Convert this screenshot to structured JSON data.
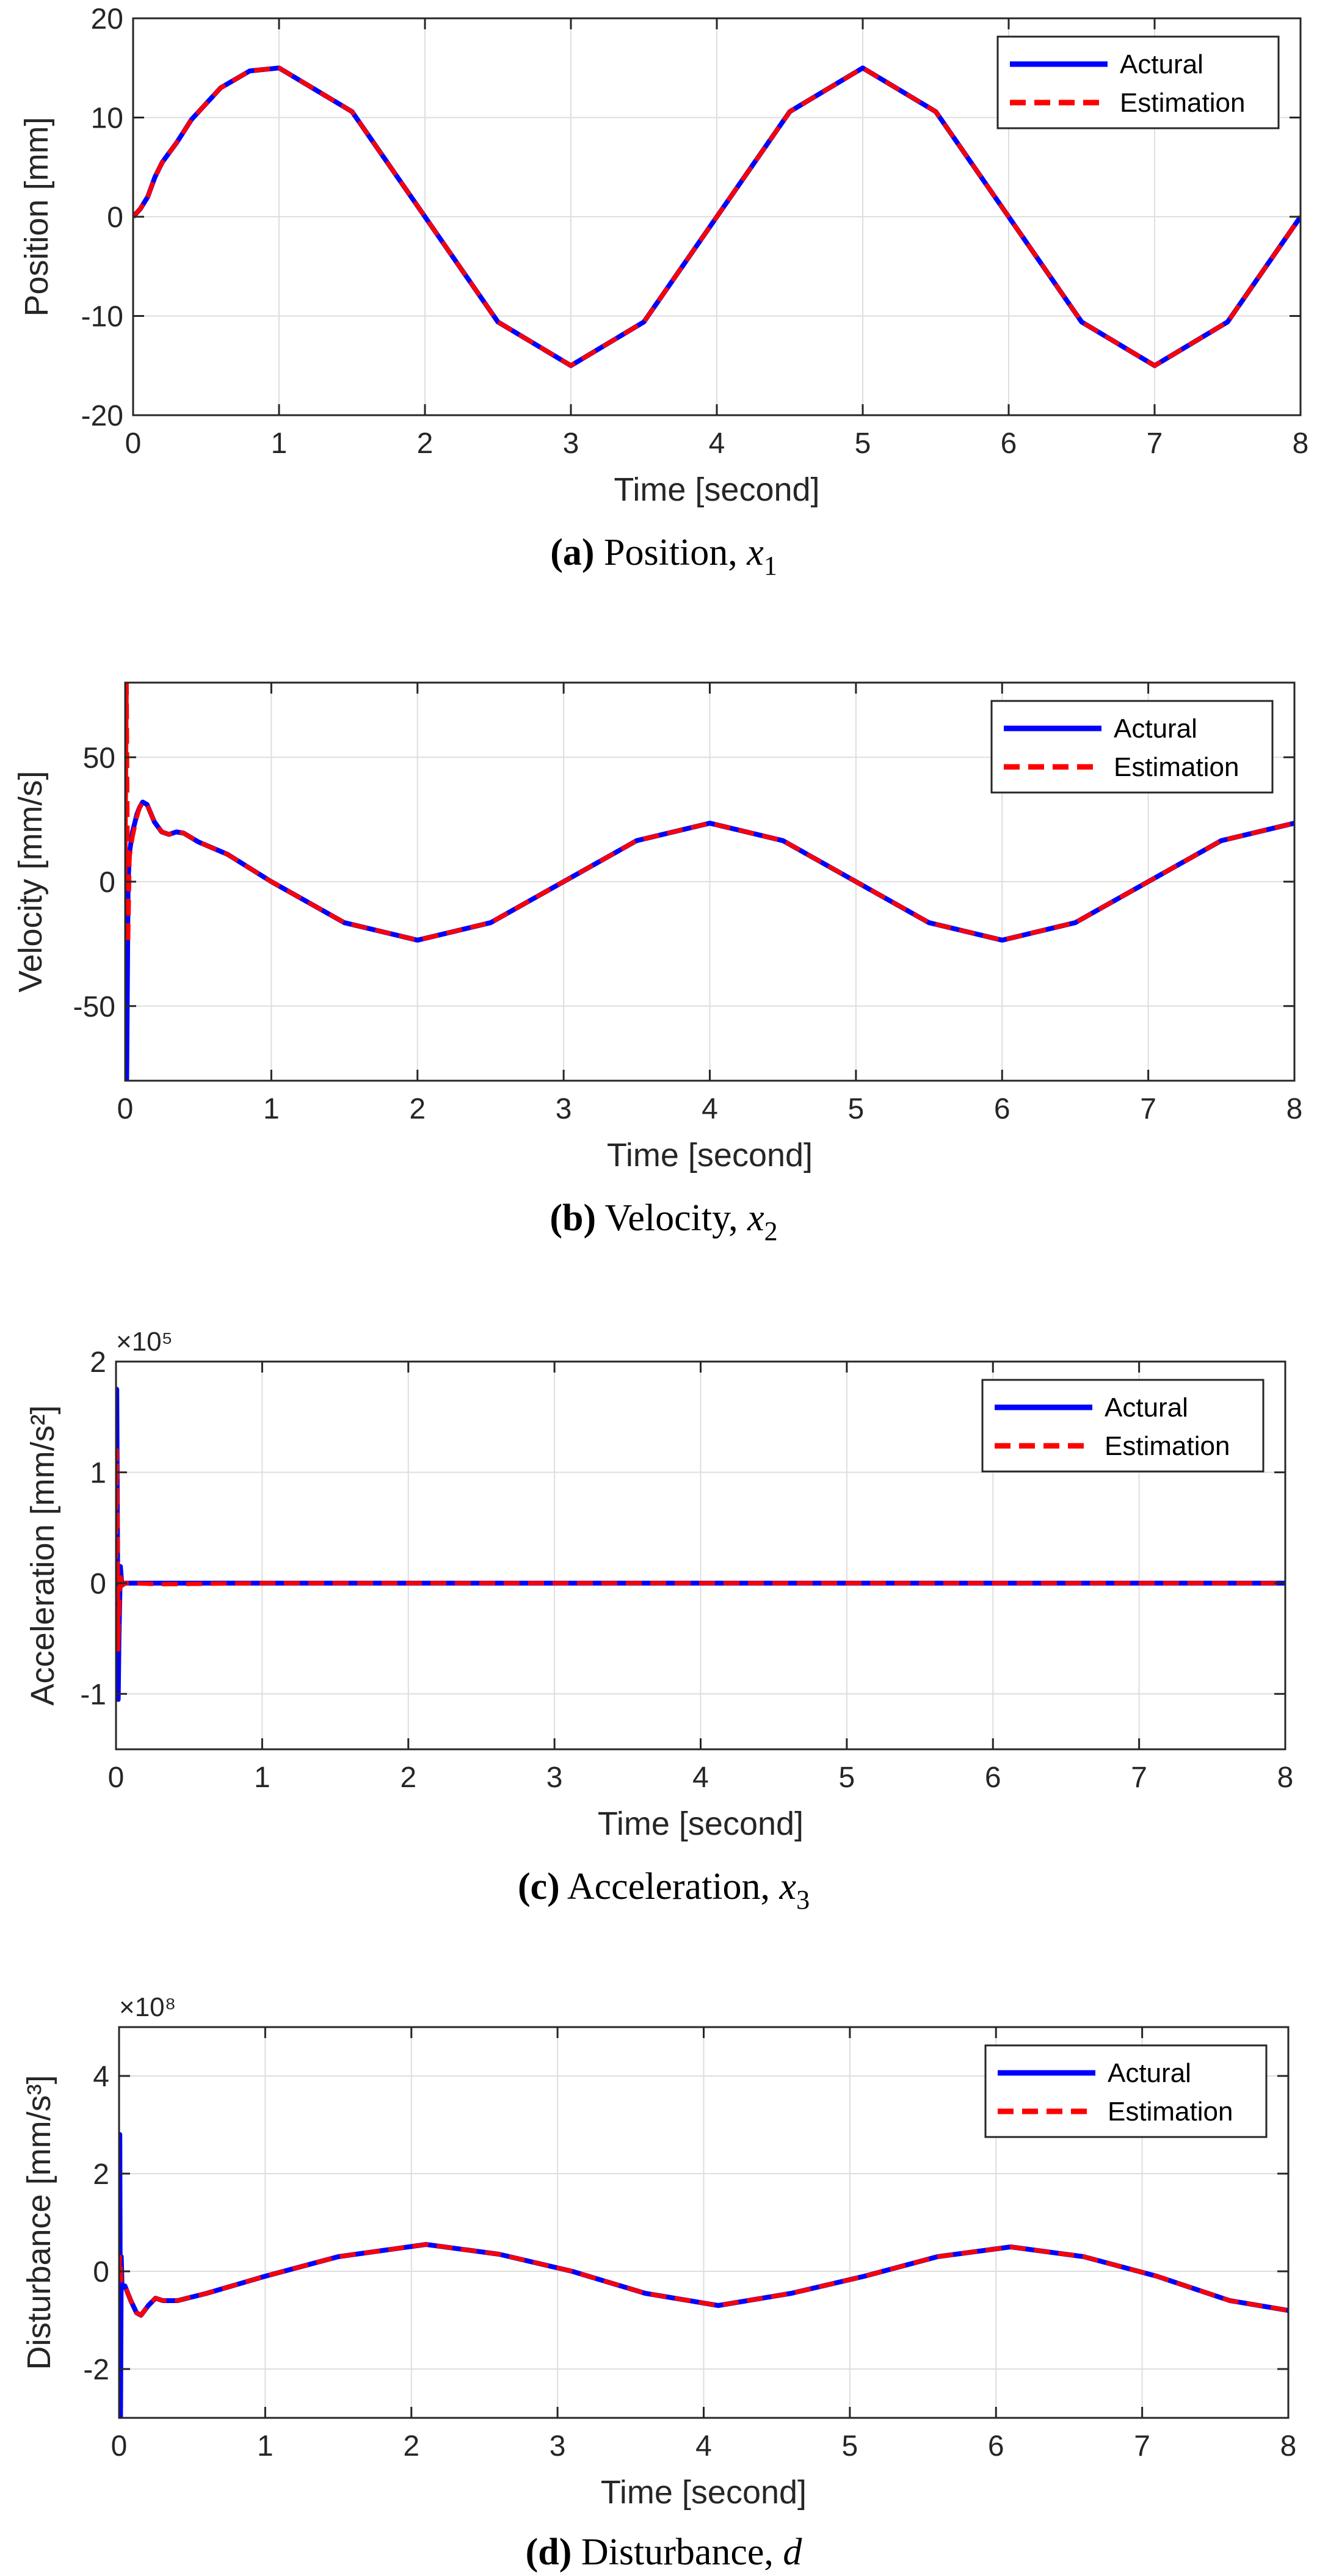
{
  "colors": {
    "actual": "#0000ff",
    "estimate": "#ff0000",
    "grid": "#dedede",
    "axis": "#262626"
  },
  "chart_data": [
    {
      "type": "line",
      "id": "a",
      "title": "",
      "xlabel": "Time [second]",
      "ylabel": "Position [mm]",
      "xlim": [
        0,
        8
      ],
      "ylim": [
        -20,
        20
      ],
      "xticks": [
        0,
        1,
        2,
        3,
        4,
        5,
        6,
        7,
        8
      ],
      "xtick_labels": [
        "0",
        "1",
        "2",
        "3",
        "4",
        "5",
        "6",
        "7",
        "8"
      ],
      "yticks": [
        -20,
        -10,
        0,
        10,
        20
      ],
      "ytick_labels": [
        "-20",
        "-10",
        "0",
        "10",
        "20"
      ],
      "multiplier": "",
      "grid": true,
      "legend": {
        "position": "top-right",
        "entries": [
          "Actural",
          "Estimation"
        ]
      },
      "series": [
        {
          "name": "Actural",
          "style": "solid",
          "x": [
            0,
            0.05,
            0.1,
            0.15,
            0.2,
            0.3,
            0.4,
            0.6,
            0.8,
            1.0,
            1.5,
            2.0,
            2.5,
            3.0,
            3.5,
            4.0,
            4.5,
            5.0,
            5.5,
            6.0,
            6.5,
            7.0,
            7.5,
            8.0
          ],
          "y": [
            0,
            0.8,
            2.0,
            4.0,
            5.5,
            7.5,
            9.8,
            13.0,
            14.7,
            15.0,
            10.6,
            0,
            -10.6,
            -15.0,
            -10.6,
            0,
            10.6,
            15.0,
            10.6,
            0,
            -10.6,
            -15.0,
            -10.6,
            0
          ]
        },
        {
          "name": "Estimation",
          "style": "dashed",
          "x": [
            0,
            0.05,
            0.1,
            0.15,
            0.2,
            0.3,
            0.4,
            0.6,
            0.8,
            1.0,
            1.5,
            2.0,
            2.5,
            3.0,
            3.5,
            4.0,
            4.5,
            5.0,
            5.5,
            6.0,
            6.5,
            7.0,
            7.5,
            8.0
          ],
          "y": [
            0,
            0.8,
            2.0,
            4.0,
            5.5,
            7.5,
            9.8,
            13.0,
            14.7,
            15.0,
            10.6,
            0,
            -10.6,
            -15.0,
            -10.6,
            0,
            10.6,
            15.0,
            10.6,
            0,
            -10.6,
            -15.0,
            -10.6,
            0
          ]
        }
      ]
    },
    {
      "type": "line",
      "id": "b",
      "title": "",
      "xlabel": "Time [second]",
      "ylabel": "Velocity [mm/s]",
      "xlim": [
        0,
        8
      ],
      "ylim": [
        -80,
        80
      ],
      "xticks": [
        0,
        1,
        2,
        3,
        4,
        5,
        6,
        7,
        8
      ],
      "xtick_labels": [
        "0",
        "1",
        "2",
        "3",
        "4",
        "5",
        "6",
        "7",
        "8"
      ],
      "yticks": [
        -50,
        0,
        50
      ],
      "ytick_labels": [
        "-50",
        "0",
        "50"
      ],
      "multiplier": "",
      "grid": true,
      "legend": {
        "position": "top-right",
        "entries": [
          "Actural",
          "Estimation"
        ]
      },
      "series": [
        {
          "name": "Actural",
          "style": "solid",
          "x": [
            0,
            0.01,
            0.02,
            0.03,
            0.05,
            0.08,
            0.1,
            0.12,
            0.15,
            0.2,
            0.25,
            0.3,
            0.35,
            0.4,
            0.5,
            0.7,
            1.0,
            1.5,
            2.0,
            2.5,
            3.0,
            3.5,
            4.0,
            4.5,
            5.0,
            5.5,
            6.0,
            6.5,
            7.0,
            7.5,
            8.0
          ],
          "y": [
            0,
            -80,
            0,
            12,
            20,
            27,
            30,
            32,
            31,
            24,
            20,
            19,
            20,
            19.5,
            16,
            11,
            0,
            -16.5,
            -23.5,
            -16.5,
            0,
            16.5,
            23.5,
            16.5,
            0,
            -16.5,
            -23.5,
            -16.5,
            0,
            16.5,
            23.5
          ]
        },
        {
          "name": "Estimation",
          "style": "dashed",
          "x": [
            0,
            0.01,
            0.02,
            0.03,
            0.05,
            0.08,
            0.1,
            0.12,
            0.15,
            0.2,
            0.25,
            0.3,
            0.35,
            0.4,
            0.5,
            0.7,
            1.0,
            1.5,
            2.0,
            2.5,
            3.0,
            3.5,
            4.0,
            4.5,
            5.0,
            5.5,
            6.0,
            6.5,
            7.0,
            7.5,
            8.0
          ],
          "y": [
            0,
            80,
            -25,
            10,
            18,
            26,
            30,
            32,
            31,
            24,
            20,
            19,
            20,
            19.5,
            16,
            11,
            0,
            -16.5,
            -23.5,
            -16.5,
            0,
            16.5,
            23.5,
            16.5,
            0,
            -16.5,
            -23.5,
            -16.5,
            0,
            16.5,
            23.5
          ]
        }
      ]
    },
    {
      "type": "line",
      "id": "c",
      "title": "",
      "xlabel": "Time [second]",
      "ylabel": "Acceleration [mm/s²]",
      "xlim": [
        0,
        8
      ],
      "ylim": [
        -1.5,
        2
      ],
      "xticks": [
        0,
        1,
        2,
        3,
        4,
        5,
        6,
        7,
        8
      ],
      "xtick_labels": [
        "0",
        "1",
        "2",
        "3",
        "4",
        "5",
        "6",
        "7",
        "8"
      ],
      "yticks": [
        -1,
        0,
        1,
        2
      ],
      "ytick_labels": [
        "-1",
        "0",
        "1",
        "2"
      ],
      "multiplier": "×10⁵",
      "grid": true,
      "legend": {
        "position": "top-right",
        "entries": [
          "Actural",
          "Estimation"
        ]
      },
      "series": [
        {
          "name": "Actural",
          "style": "solid",
          "x": [
            0,
            0.005,
            0.01,
            0.015,
            0.02,
            0.03,
            0.04,
            0.06,
            0.1,
            0.3,
            1.0,
            2.0,
            3.0,
            4.0,
            5.0,
            6.0,
            7.0,
            8.0
          ],
          "y": [
            0,
            1.75,
            0.4,
            -1.05,
            -0.5,
            0.15,
            -0.02,
            0.0,
            0.0,
            0.0,
            0.0,
            0.0,
            0.0,
            0.0,
            0.0,
            0.0,
            0.0,
            0.0
          ]
        },
        {
          "name": "Estimation",
          "style": "dashed",
          "x": [
            0,
            0.005,
            0.01,
            0.015,
            0.02,
            0.03,
            0.04,
            0.06,
            0.1,
            0.3,
            1.0,
            2.0,
            3.0,
            4.0,
            5.0,
            6.0,
            7.0,
            8.0
          ],
          "y": [
            0,
            1.2,
            0.5,
            -0.6,
            -0.3,
            0.1,
            -0.02,
            0.0,
            0.0,
            -0.01,
            0.0,
            0.0,
            0.0,
            0.0,
            0.0,
            0.0,
            0.0,
            0.0
          ]
        }
      ]
    },
    {
      "type": "line",
      "id": "d",
      "title": "",
      "xlabel": "Time [second]",
      "ylabel": "Disturbance [mm/s³]",
      "xlim": [
        0,
        8
      ],
      "ylim": [
        -3,
        5
      ],
      "xticks": [
        0,
        1,
        2,
        3,
        4,
        5,
        6,
        7,
        8
      ],
      "xtick_labels": [
        "0",
        "1",
        "2",
        "3",
        "4",
        "5",
        "6",
        "7",
        "8"
      ],
      "yticks": [
        -2,
        0,
        2,
        4
      ],
      "ytick_labels": [
        "-2",
        "0",
        "2",
        "4"
      ],
      "multiplier": "×10⁸",
      "grid": true,
      "legend": {
        "position": "top-right",
        "entries": [
          "Actural",
          "Estimation"
        ]
      },
      "series": [
        {
          "name": "Actural",
          "style": "solid",
          "x": [
            0,
            0.005,
            0.01,
            0.015,
            0.02,
            0.04,
            0.08,
            0.12,
            0.15,
            0.2,
            0.25,
            0.3,
            0.4,
            0.6,
            1.0,
            1.5,
            2.1,
            2.6,
            3.1,
            3.6,
            4.1,
            4.6,
            5.1,
            5.6,
            6.1,
            6.6,
            7.1,
            7.6,
            8.0
          ],
          "y": [
            0,
            2.8,
            -3.0,
            0.3,
            -0.3,
            -0.3,
            -0.6,
            -0.85,
            -0.9,
            -0.7,
            -0.55,
            -0.6,
            -0.6,
            -0.45,
            -0.1,
            0.3,
            0.55,
            0.35,
            0.0,
            -0.45,
            -0.7,
            -0.45,
            -0.1,
            0.3,
            0.5,
            0.3,
            -0.1,
            -0.6,
            -0.8
          ]
        },
        {
          "name": "Estimation",
          "style": "dashed",
          "x": [
            0,
            0.005,
            0.01,
            0.015,
            0.02,
            0.04,
            0.08,
            0.12,
            0.15,
            0.2,
            0.25,
            0.3,
            0.4,
            0.6,
            1.0,
            1.5,
            2.1,
            2.6,
            3.1,
            3.6,
            4.1,
            4.6,
            5.1,
            5.6,
            6.1,
            6.6,
            7.1,
            7.6,
            8.0
          ],
          "y": [
            0,
            0.3,
            0.1,
            -0.2,
            -0.25,
            -0.3,
            -0.6,
            -0.85,
            -0.9,
            -0.7,
            -0.55,
            -0.6,
            -0.6,
            -0.45,
            -0.1,
            0.3,
            0.55,
            0.35,
            0.0,
            -0.45,
            -0.7,
            -0.45,
            -0.1,
            0.3,
            0.5,
            0.3,
            -0.1,
            -0.6,
            -0.8
          ]
        }
      ]
    }
  ],
  "captions": [
    {
      "letter": "(a)",
      "text": "Position,",
      "var": "x",
      "sub": "1"
    },
    {
      "letter": "(b)",
      "text": "Velocity,",
      "var": "x",
      "sub": "2"
    },
    {
      "letter": "(c)",
      "text": "Acceleration,",
      "var": "x",
      "sub": "3"
    },
    {
      "letter": "(d)",
      "text": "Disturbance,",
      "var": "d",
      "sub": ""
    }
  ]
}
